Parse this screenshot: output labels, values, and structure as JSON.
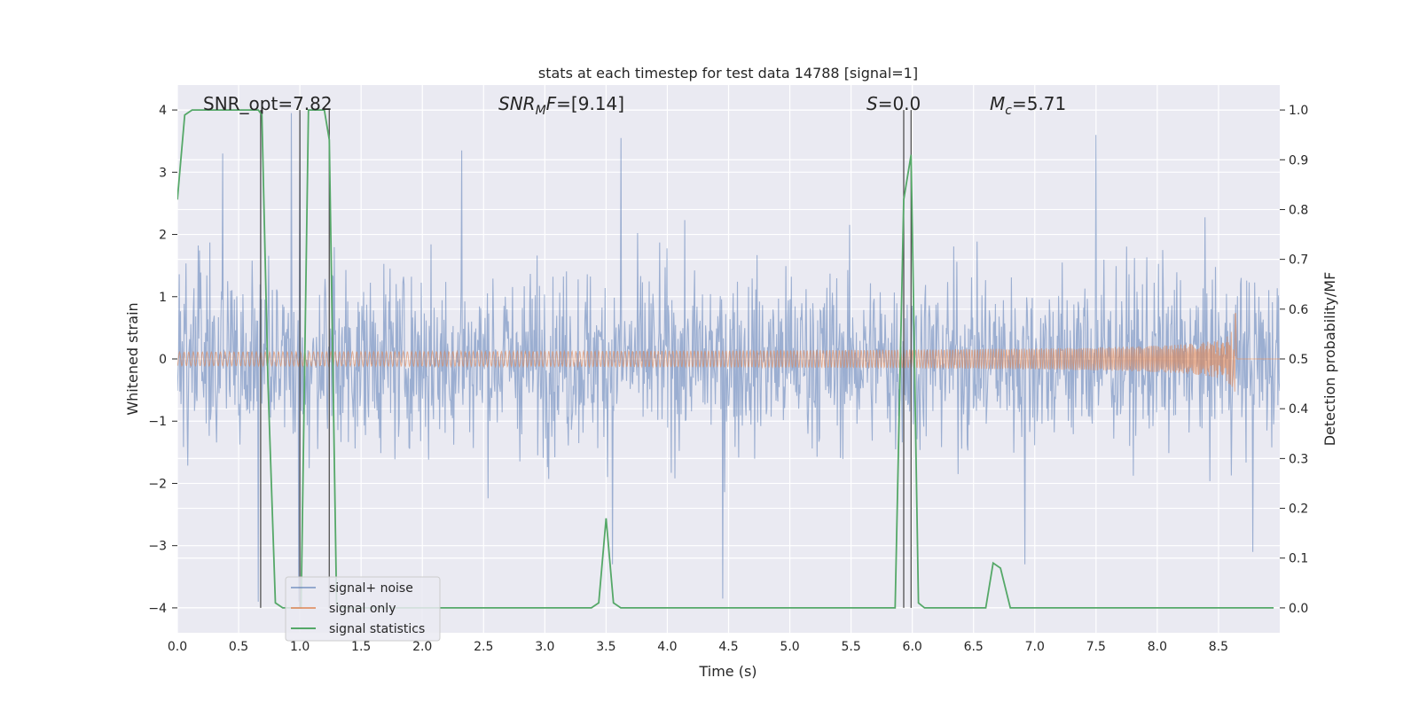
{
  "chart_data": {
    "type": "line",
    "title": "stats at each timestep for test data 14788 [signal=1]",
    "xlabel": "Time (s)",
    "ylabel": "Whitened strain",
    "ylabel_right": "Detection probability/MF",
    "xlim": [
      0.0,
      9.0
    ],
    "ylim": [
      -4.4,
      4.4
    ],
    "ylim_right": [
      -0.05,
      1.05
    ],
    "x_ticks": [
      "0.0",
      "0.5",
      "1.0",
      "1.5",
      "2.0",
      "2.5",
      "3.0",
      "3.5",
      "4.0",
      "4.5",
      "5.0",
      "5.5",
      "6.0",
      "6.5",
      "7.0",
      "7.5",
      "8.0",
      "8.5"
    ],
    "y_ticks": [
      "−4",
      "−3",
      "−2",
      "−1",
      "0",
      "1",
      "2",
      "3",
      "4"
    ],
    "y_ticks_right": [
      "0.0",
      "0.1",
      "0.2",
      "0.3",
      "0.4",
      "0.5",
      "0.6",
      "0.7",
      "0.8",
      "0.9",
      "1.0"
    ],
    "grid": true,
    "annotations": {
      "snr_opt": "SNR_opt=7.82",
      "snr_mf": "[9.14]",
      "snr_mf_base": "SNR",
      "snr_mf_sub": "M",
      "snr_mf_tail": "F=",
      "s_stat": "S=0.0",
      "s_italic": "S",
      "s_rest": "=0.0",
      "mc": "M",
      "mc_sub": "c",
      "mc_rest": "=5.71"
    },
    "vertical_markers": [
      0.68,
      1.0,
      1.24,
      5.93,
      5.99
    ],
    "legend": {
      "position": "lower-left",
      "entries": [
        "signal+ noise",
        "signal only",
        "signal statistics"
      ]
    },
    "series": [
      {
        "name": "signal+ noise",
        "axis": "left",
        "color": "#4c72b0",
        "description_level": "noise amplitude about ±2 with peaks to ±3.9",
        "seed": 14788,
        "typical_amplitude": 1.0,
        "spikes": [
          {
            "x": 0.66,
            "y": -3.9
          },
          {
            "x": 0.93,
            "y": 3.95
          },
          {
            "x": 0.99,
            "y": -3.9
          },
          {
            "x": 1.0,
            "y": 3.95
          },
          {
            "x": 4.45,
            "y": -3.85
          },
          {
            "x": 3.55,
            "y": -3.3
          },
          {
            "x": 6.92,
            "y": -3.3
          },
          {
            "x": 7.5,
            "y": 3.6
          },
          {
            "x": 0.37,
            "y": 3.3
          },
          {
            "x": 2.32,
            "y": 3.35
          },
          {
            "x": 3.62,
            "y": 3.55
          },
          {
            "x": 8.78,
            "y": -3.1
          }
        ]
      },
      {
        "name": "signal only",
        "axis": "left",
        "color": "#dd8452",
        "chirp_end_time": 8.64,
        "peak_amplitude": 0.8
      },
      {
        "name": "signal statistics",
        "axis": "right",
        "color": "#55a868",
        "x": [
          0.0,
          0.06,
          0.12,
          0.3,
          0.5,
          0.66,
          0.69,
          0.74,
          0.8,
          0.86,
          0.94,
          0.98,
          1.01,
          1.07,
          1.14,
          1.2,
          1.24,
          1.3,
          1.34,
          1.4,
          3.3,
          3.38,
          3.44,
          3.5,
          3.56,
          3.62,
          3.7,
          5.8,
          5.86,
          5.93,
          5.99,
          6.05,
          6.1,
          6.25,
          6.35,
          6.6,
          6.66,
          6.72,
          6.8,
          8.5,
          8.6,
          8.7,
          8.8,
          8.95
        ],
        "y": [
          0.82,
          0.99,
          1.0,
          1.0,
          1.0,
          1.0,
          0.99,
          0.45,
          0.01,
          0.0,
          0.0,
          0.0,
          0.0,
          1.0,
          1.0,
          1.0,
          0.94,
          0.01,
          0.0,
          0.0,
          0.0,
          0.0,
          0.01,
          0.18,
          0.01,
          0.0,
          0.0,
          0.0,
          0.0,
          0.82,
          0.91,
          0.01,
          0.0,
          0.0,
          0.0,
          0.0,
          0.09,
          0.08,
          0.0,
          0.0,
          0.0,
          0.0,
          0.0,
          0.0
        ]
      }
    ]
  }
}
